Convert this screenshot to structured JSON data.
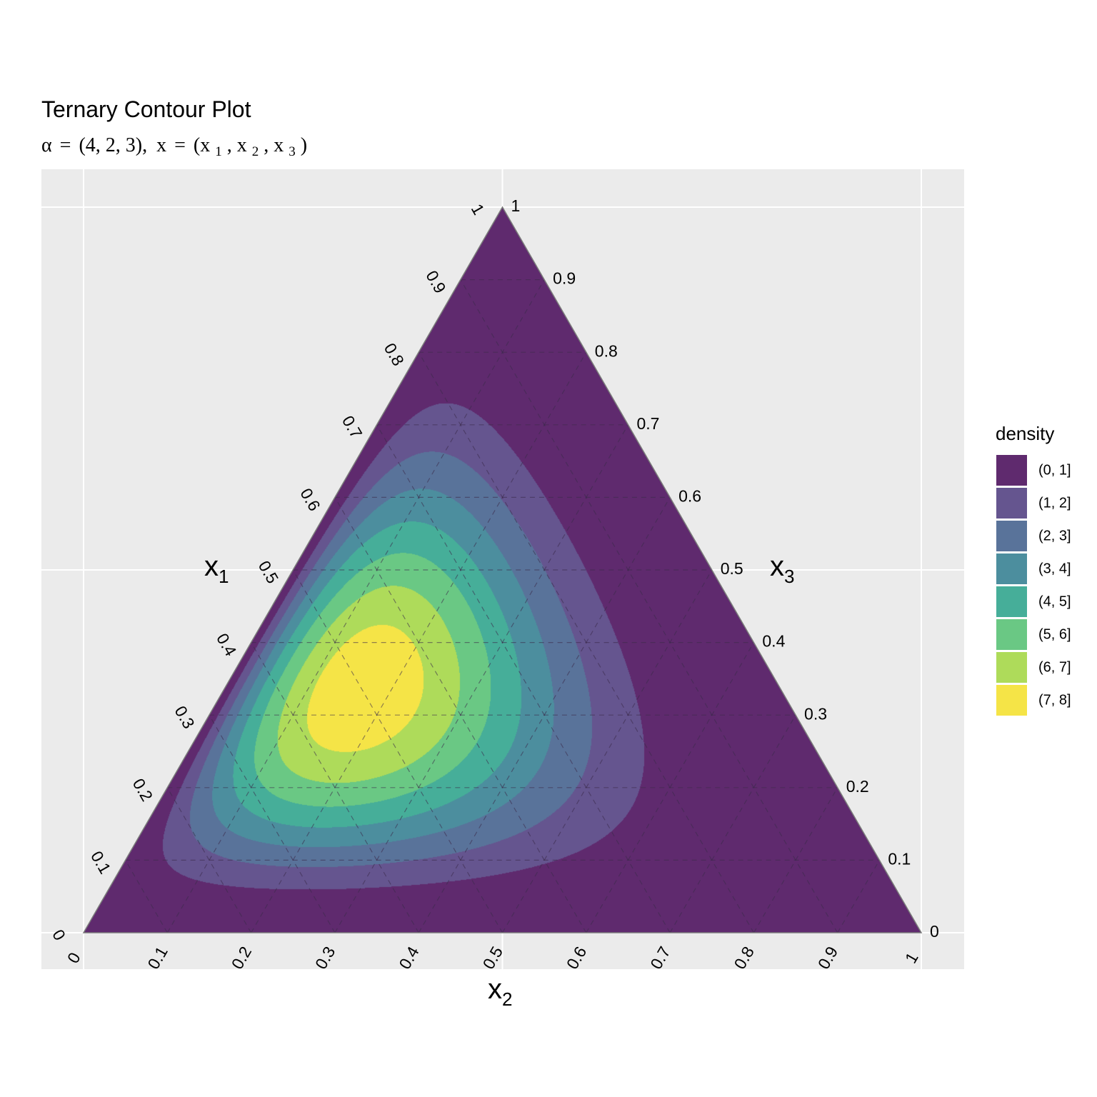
{
  "chart_data": {
    "type": "ternary-contour",
    "title": "Ternary Contour Plot",
    "subtitle": {
      "alpha_symbol": "α",
      "eq": "=",
      "alpha_value": "(4, 2, 3),",
      "x_symbol": "x",
      "x_value_parts": [
        "(x",
        "1",
        ", x",
        "2",
        ", x",
        "3",
        ")"
      ]
    },
    "axes": {
      "left": {
        "name": "x",
        "sub": "1"
      },
      "bottom": {
        "name": "x",
        "sub": "2"
      },
      "right": {
        "name": "x",
        "sub": "3"
      }
    },
    "ticks": {
      "left": [
        "0",
        "0.1",
        "0.2",
        "0.3",
        "0.4",
        "0.5",
        "0.6",
        "0.7",
        "0.8",
        "0.9",
        "1"
      ],
      "bottom": [
        "0",
        "0.1",
        "0.2",
        "0.3",
        "0.4",
        "0.5",
        "0.6",
        "0.7",
        "0.8",
        "0.9",
        "1"
      ],
      "right": [
        "1",
        "0.9",
        "0.8",
        "0.7",
        "0.6",
        "0.5",
        "0.4",
        "0.3",
        "0.2",
        "0.1",
        "0"
      ]
    },
    "dirichlet_alpha": [
      4,
      2,
      3
    ],
    "grid": true,
    "legend": {
      "title": "density",
      "position": "right",
      "bins": [
        {
          "label": "(0, 1]",
          "lo": 0,
          "hi": 1,
          "color": "#5f2a6e"
        },
        {
          "label": "(1, 2]",
          "lo": 1,
          "hi": 2,
          "color": "#65558f"
        },
        {
          "label": "(2, 3]",
          "lo": 2,
          "hi": 3,
          "color": "#59739a"
        },
        {
          "label": "(3, 4]",
          "lo": 3,
          "hi": 4,
          "color": "#4c8e9e"
        },
        {
          "label": "(4, 5]",
          "lo": 4,
          "hi": 5,
          "color": "#46ae99"
        },
        {
          "label": "(5, 6]",
          "lo": 5,
          "hi": 6,
          "color": "#6ac884"
        },
        {
          "label": "(6, 7]",
          "lo": 6,
          "hi": 7,
          "color": "#aedb5a"
        },
        {
          "label": "(7, 8]",
          "lo": 7,
          "hi": 8,
          "color": "#f5e447"
        }
      ]
    }
  }
}
